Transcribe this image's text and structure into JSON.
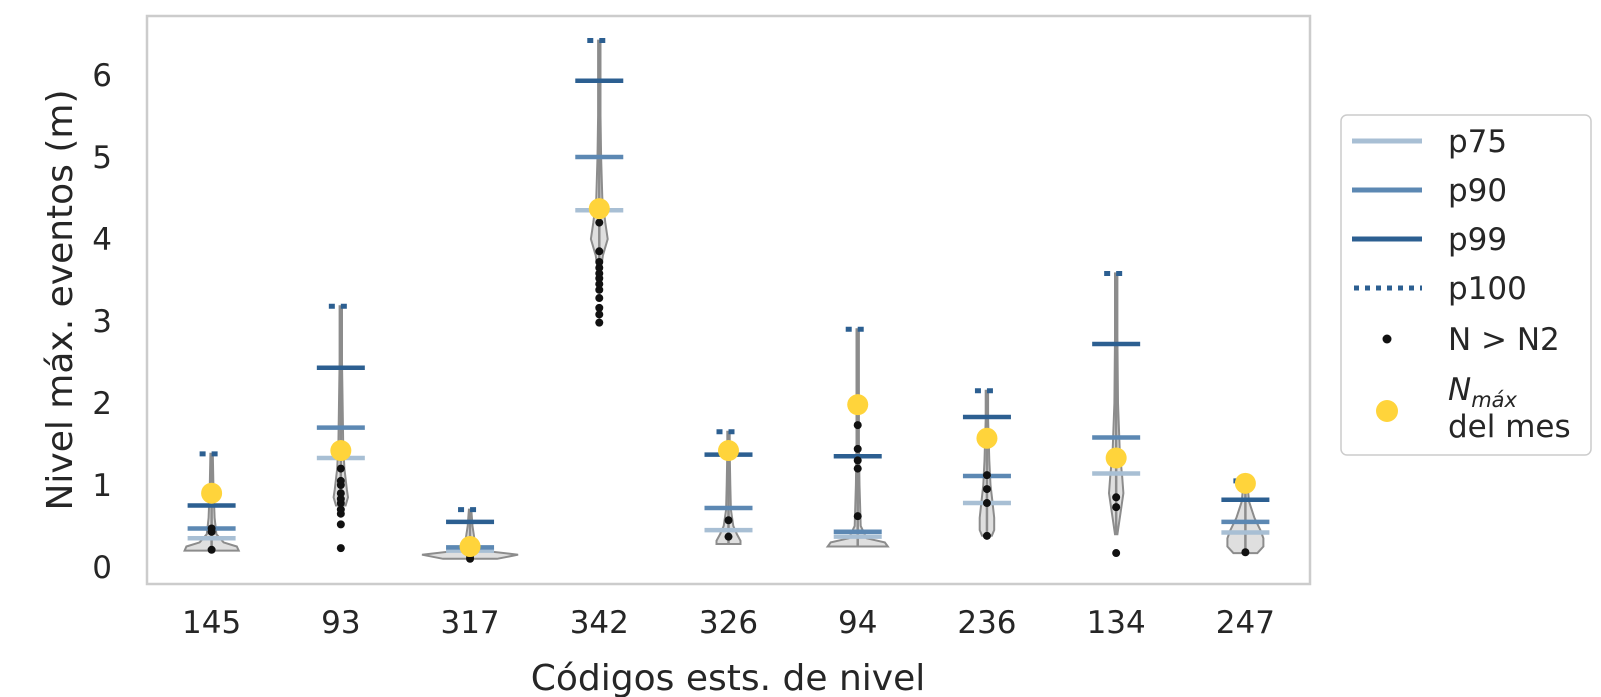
{
  "chart_data": {
    "type": "violin",
    "xlabel": "Códigos ests. de nivel",
    "ylabel": "Nivel máx. eventos  (m)",
    "categories": [
      "145",
      "93",
      "317",
      "342",
      "326",
      "94",
      "236",
      "134",
      "247"
    ],
    "yticks": [
      "0",
      "1",
      "2",
      "3",
      "4",
      "5",
      "6"
    ],
    "ylim": [
      -0.25,
      6.7
    ],
    "grid": false,
    "legend_position": "right",
    "legend": {
      "p75": "p75",
      "p90": "p90",
      "p99": "p99",
      "p100": "p100",
      "exceed": "N > N2",
      "nmax_symbol": "N",
      "nmax_sub": "máx",
      "nmax_line2": "del mes"
    },
    "colors": {
      "p75": "#a8bfd4",
      "p90": "#5c88b3",
      "p99": "#2c5f91",
      "p100": "#2c5f91",
      "nmax": "#ffd43b",
      "exceed": "#111111",
      "violin_fill": "#d9d9d9",
      "violin_edge": "#8c8c8c"
    },
    "stations": [
      {
        "code": "145",
        "p75": 0.35,
        "p90": 0.47,
        "p99": 0.75,
        "p100": 1.38,
        "nmax": 0.9,
        "violin": [
          [
            0.2,
            0.45
          ],
          [
            0.25,
            0.42
          ],
          [
            0.3,
            0.2
          ],
          [
            0.4,
            0.08
          ],
          [
            0.6,
            0.05
          ],
          [
            0.8,
            0.04
          ],
          [
            1.0,
            0.03
          ],
          [
            1.38,
            0.02
          ]
        ],
        "exceed": [
          0.21,
          0.43,
          0.47
        ]
      },
      {
        "code": "93",
        "p75": 1.33,
        "p90": 1.7,
        "p99": 2.43,
        "p100": 3.18,
        "nmax": 1.42,
        "violin": [
          [
            0.75,
            0.08
          ],
          [
            0.85,
            0.12
          ],
          [
            0.95,
            0.1
          ],
          [
            1.2,
            0.06
          ],
          [
            1.5,
            0.04
          ],
          [
            2.0,
            0.03
          ],
          [
            2.5,
            0.02
          ],
          [
            3.18,
            0.02
          ]
        ],
        "exceed": [
          0.23,
          0.52,
          0.65,
          0.7,
          0.78,
          0.83,
          0.9,
          1.0,
          1.05,
          1.2
        ]
      },
      {
        "code": "317",
        "p75": 0.2,
        "p90": 0.24,
        "p99": 0.55,
        "p100": 0.7,
        "nmax": 0.25,
        "violin": [
          [
            0.1,
            0.45
          ],
          [
            0.15,
            0.8
          ],
          [
            0.2,
            0.2
          ],
          [
            0.3,
            0.08
          ],
          [
            0.5,
            0.04
          ],
          [
            0.7,
            0.02
          ]
        ],
        "exceed": [
          0.1,
          0.13,
          0.17
        ]
      },
      {
        "code": "342",
        "p75": 4.35,
        "p90": 5.0,
        "p99": 5.93,
        "p100": 6.42,
        "nmax": 4.37,
        "violin": [
          [
            3.6,
            0.02
          ],
          [
            3.8,
            0.06
          ],
          [
            4.0,
            0.14
          ],
          [
            4.2,
            0.1
          ],
          [
            4.5,
            0.05
          ],
          [
            5.0,
            0.03
          ],
          [
            5.5,
            0.02
          ],
          [
            6.42,
            0.02
          ]
        ],
        "exceed": [
          2.98,
          3.08,
          3.16,
          3.28,
          3.38,
          3.45,
          3.52,
          3.58,
          3.65,
          3.72,
          3.85,
          4.2
        ]
      },
      {
        "code": "326",
        "p75": 0.45,
        "p90": 0.72,
        "p99": 1.37,
        "p100": 1.65,
        "nmax": 1.42,
        "violin": [
          [
            0.28,
            0.2
          ],
          [
            0.32,
            0.2
          ],
          [
            0.4,
            0.14
          ],
          [
            0.5,
            0.08
          ],
          [
            0.7,
            0.04
          ],
          [
            1.0,
            0.03
          ],
          [
            1.4,
            0.02
          ],
          [
            1.65,
            0.02
          ]
        ],
        "exceed": [
          0.37,
          0.57
        ]
      },
      {
        "code": "94",
        "p75": 0.37,
        "p90": 0.43,
        "p99": 1.35,
        "p100": 2.9,
        "nmax": 1.98,
        "violin": [
          [
            0.25,
            0.5
          ],
          [
            0.3,
            0.45
          ],
          [
            0.35,
            0.15
          ],
          [
            0.5,
            0.05
          ],
          [
            1.0,
            0.03
          ],
          [
            1.5,
            0.02
          ],
          [
            2.9,
            0.02
          ]
        ],
        "exceed": [
          0.62,
          1.2,
          1.3,
          1.44,
          1.73
        ]
      },
      {
        "code": "236",
        "p75": 0.78,
        "p90": 1.11,
        "p99": 1.83,
        "p100": 2.15,
        "nmax": 1.57,
        "violin": [
          [
            0.38,
            0.08
          ],
          [
            0.45,
            0.12
          ],
          [
            0.6,
            0.12
          ],
          [
            0.8,
            0.09
          ],
          [
            1.0,
            0.06
          ],
          [
            1.3,
            0.04
          ],
          [
            1.8,
            0.02
          ],
          [
            2.15,
            0.02
          ]
        ],
        "exceed": [
          0.38,
          0.78,
          0.95,
          1.12
        ]
      },
      {
        "code": "134",
        "p75": 1.14,
        "p90": 1.58,
        "p99": 2.72,
        "p100": 3.58,
        "nmax": 1.33,
        "violin": [
          [
            0.4,
            0.02
          ],
          [
            0.7,
            0.08
          ],
          [
            0.9,
            0.12
          ],
          [
            1.1,
            0.1
          ],
          [
            1.4,
            0.06
          ],
          [
            2.0,
            0.03
          ],
          [
            2.8,
            0.02
          ],
          [
            3.58,
            0.02
          ]
        ],
        "exceed": [
          0.17,
          0.73,
          0.85
        ]
      },
      {
        "code": "247",
        "p75": 0.42,
        "p90": 0.55,
        "p99": 0.82,
        "p100": 1.05,
        "nmax": 1.02,
        "violin": [
          [
            0.17,
            0.2
          ],
          [
            0.25,
            0.3
          ],
          [
            0.35,
            0.3
          ],
          [
            0.45,
            0.25
          ],
          [
            0.6,
            0.15
          ],
          [
            0.8,
            0.06
          ],
          [
            1.05,
            0.03
          ]
        ],
        "exceed": [
          0.18
        ]
      }
    ]
  }
}
